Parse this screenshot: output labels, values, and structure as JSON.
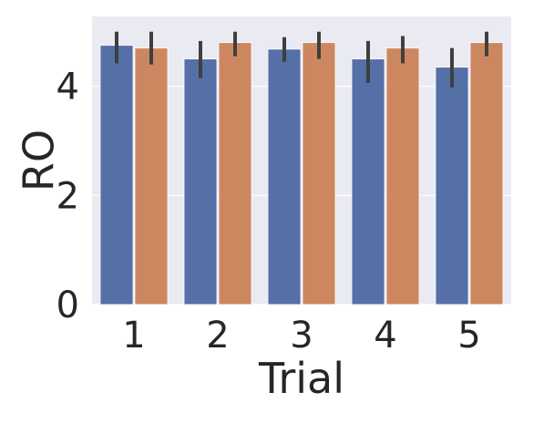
{
  "chart_data": {
    "type": "bar",
    "xlabel": "Trial",
    "ylabel": "RO",
    "categories": [
      "1",
      "2",
      "3",
      "4",
      "5"
    ],
    "ylim": [
      0,
      5.28
    ],
    "yticks": [
      0,
      2,
      4
    ],
    "grid": true,
    "series": [
      {
        "color": "#5470a6",
        "values": [
          4.75,
          4.5,
          4.68,
          4.5,
          4.35
        ],
        "ci_low": [
          4.42,
          4.15,
          4.45,
          4.06,
          3.98
        ],
        "ci_high": [
          5.0,
          4.83,
          4.9,
          4.83,
          4.7
        ]
      },
      {
        "color": "#cc8760",
        "values": [
          4.7,
          4.8,
          4.8,
          4.7,
          4.8
        ],
        "ci_low": [
          4.4,
          4.55,
          4.5,
          4.42,
          4.55
        ],
        "ci_high": [
          5.0,
          5.0,
          5.0,
          4.92,
          5.0
        ]
      }
    ]
  }
}
